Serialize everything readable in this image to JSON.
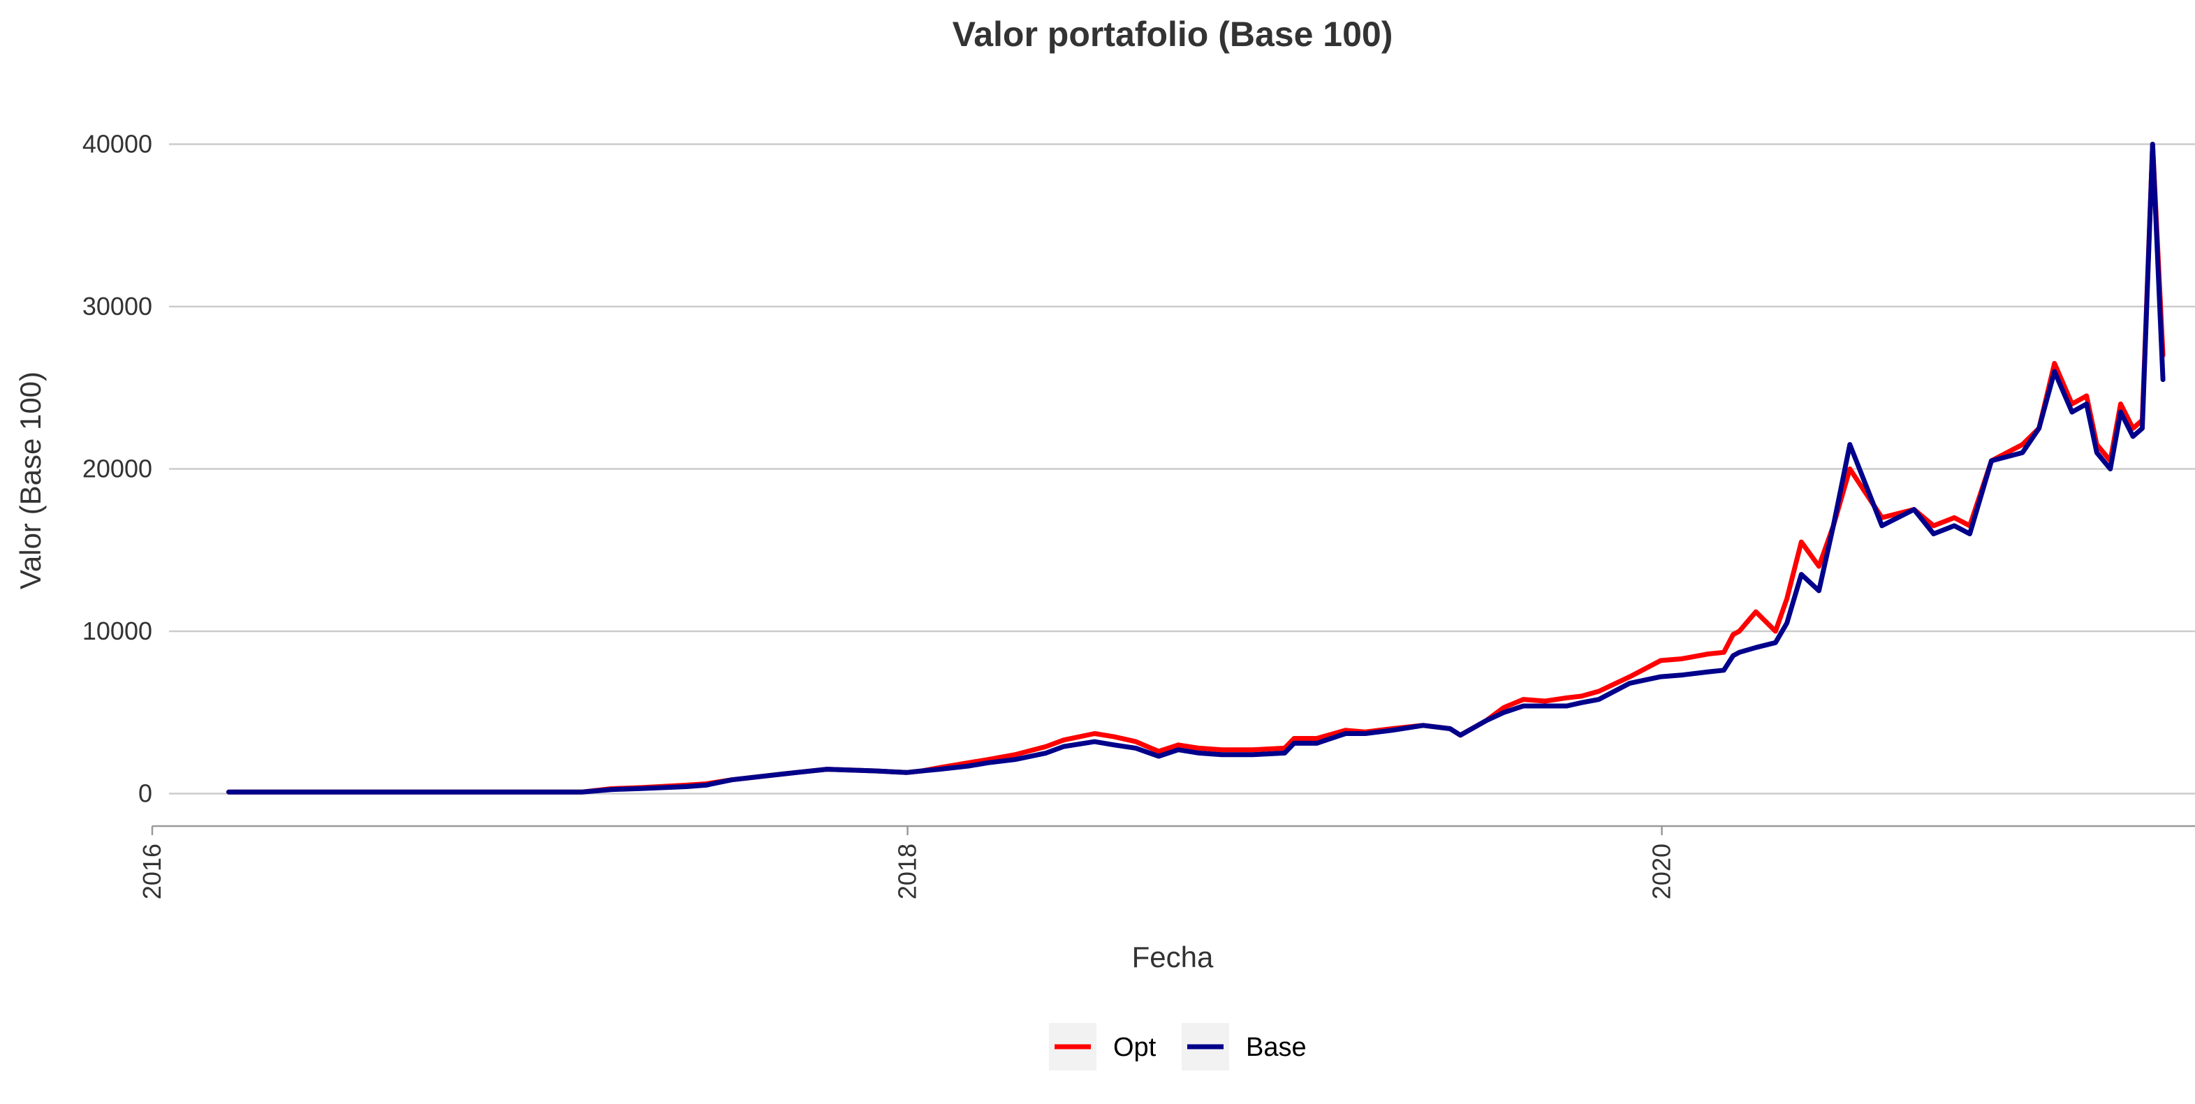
{
  "chart_data": {
    "type": "line",
    "title": "Valor portafolio (Base 100)",
    "xlabel": "Fecha",
    "ylabel": "Valor (Base 100)",
    "x_ticks": [
      "2016",
      "2018",
      "2020"
    ],
    "y_ticks": [
      "0",
      "10000",
      "20000",
      "30000",
      "40000"
    ],
    "xlim": [
      "2016-01-01",
      "2021-05-31"
    ],
    "ylim": [
      -2000,
      42000
    ],
    "grid": "horizontal",
    "legend_position": "bottom",
    "x_dates": [
      "2016-03-15",
      "2016-06-01",
      "2016-09-01",
      "2016-12-01",
      "2017-02-20",
      "2017-03-20",
      "2017-04-20",
      "2017-06-01",
      "2017-06-20",
      "2017-07-15",
      "2017-09-01",
      "2017-10-15",
      "2017-12-01",
      "2017-12-31",
      "2018-01-15",
      "2018-02-01",
      "2018-03-01",
      "2018-03-20",
      "2018-04-15",
      "2018-05-15",
      "2018-06-01",
      "2018-07-01",
      "2018-07-20",
      "2018-08-10",
      "2018-09-01",
      "2018-09-20",
      "2018-10-10",
      "2018-11-01",
      "2018-12-01",
      "2019-01-01",
      "2019-01-10",
      "2019-02-01",
      "2019-03-01",
      "2019-03-20",
      "2019-04-15",
      "2019-05-15",
      "2019-06-10",
      "2019-06-20",
      "2019-07-15",
      "2019-08-01",
      "2019-08-20",
      "2019-09-10",
      "2019-10-01",
      "2019-10-15",
      "2019-11-01",
      "2019-12-01",
      "2019-12-31",
      "2020-01-20",
      "2020-02-15",
      "2020-03-01",
      "2020-03-10",
      "2020-03-16",
      "2020-04-01",
      "2020-04-20",
      "2020-05-01",
      "2020-05-15",
      "2020-06-01",
      "2020-06-15",
      "2020-07-01",
      "2020-08-01",
      "2020-09-01",
      "2020-09-20",
      "2020-10-10",
      "2020-10-25",
      "2020-11-15",
      "2020-12-15",
      "2020-12-31",
      "2021-01-15",
      "2021-02-01",
      "2021-02-15",
      "2021-02-25",
      "2021-03-10",
      "2021-03-20",
      "2021-04-01",
      "2021-04-10",
      "2021-04-20",
      "2021-04-30"
    ],
    "series": [
      {
        "name": "Opt",
        "color": "#ff0000",
        "values": [
          100,
          100,
          100,
          100,
          100,
          300,
          380,
          520,
          600,
          850,
          1200,
          1500,
          1400,
          1300,
          1400,
          1600,
          1900,
          2100,
          2400,
          2900,
          3300,
          3700,
          3500,
          3200,
          2600,
          3000,
          2800,
          2700,
          2700,
          2800,
          3400,
          3400,
          3900,
          3800,
          4000,
          4200,
          4000,
          3600,
          4500,
          5300,
          5800,
          5700,
          5900,
          6000,
          6300,
          7200,
          8200,
          8300,
          8600,
          8700,
          9800,
          10000,
          11200,
          10000,
          12000,
          15500,
          14000,
          16500,
          20000,
          17000,
          17500,
          16500,
          17000,
          16500,
          20500,
          21500,
          22500,
          26500,
          24000,
          24500,
          21500,
          20500,
          24000,
          22500,
          23000,
          40000,
          27000
        ]
      },
      {
        "name": "Base",
        "color": "#00008b",
        "values": [
          100,
          100,
          100,
          100,
          100,
          250,
          320,
          430,
          520,
          850,
          1200,
          1500,
          1400,
          1300,
          1400,
          1500,
          1700,
          1900,
          2100,
          2500,
          2900,
          3200,
          3000,
          2800,
          2300,
          2700,
          2500,
          2400,
          2400,
          2500,
          3100,
          3100,
          3700,
          3700,
          3900,
          4200,
          4000,
          3600,
          4500,
          5000,
          5400,
          5400,
          5400,
          5600,
          5800,
          6800,
          7200,
          7300,
          7500,
          7600,
          8500,
          8700,
          9000,
          9300,
          10500,
          13500,
          12500,
          16500,
          21500,
          16500,
          17500,
          16000,
          16500,
          16000,
          20500,
          21000,
          22500,
          26000,
          23500,
          24000,
          21000,
          20000,
          23500,
          22000,
          22500,
          40000,
          25500
        ]
      }
    ]
  },
  "legend": {
    "items": [
      {
        "label": "Opt",
        "color": "#ff0000"
      },
      {
        "label": "Base",
        "color": "#00008b"
      }
    ]
  }
}
